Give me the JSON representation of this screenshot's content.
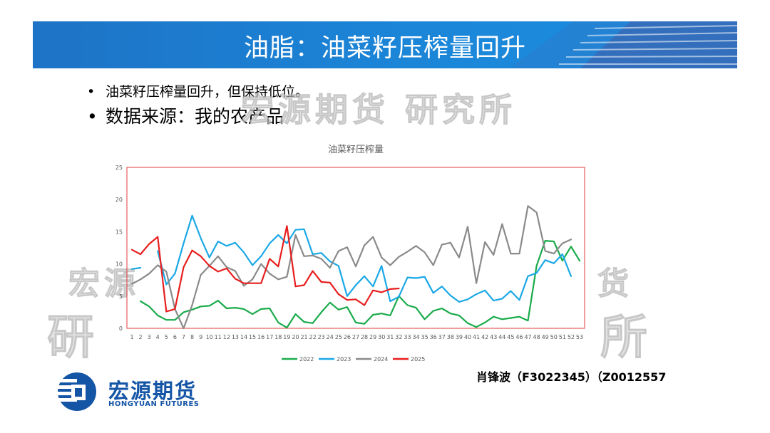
{
  "slide": {
    "title": "油脂：油菜籽压榨量回升",
    "bullets": [
      {
        "symbol": "•",
        "text": "油菜籽压榨量回升，但保持低位。"
      },
      {
        "symbol": "•",
        "text": "数据来源：我的农产品"
      }
    ],
    "watermark": {
      "top": "宏源期货 研究所",
      "left_line1": "宏源",
      "left_line2": "研",
      "right_line1": "货",
      "right_line2": "所"
    },
    "author": "肖锋波（F3022345）（Z0012557",
    "logo": {
      "name_cn": "宏源期货",
      "name_en": "HONGYUAN FUTURES"
    },
    "colors": {
      "banner": "#1b7fd2",
      "logo": "#1455a6",
      "plot_border": "#e23b3b"
    }
  },
  "chart_data": {
    "type": "line",
    "title": "油菜籽压榨量",
    "xlabel": "",
    "ylabel": "",
    "ylim": [
      0,
      25
    ],
    "yticks": [
      0,
      5,
      10,
      15,
      20,
      25
    ],
    "x": [
      1,
      2,
      3,
      4,
      5,
      6,
      7,
      8,
      9,
      10,
      11,
      12,
      13,
      14,
      15,
      16,
      17,
      18,
      19,
      20,
      21,
      22,
      23,
      24,
      25,
      26,
      27,
      28,
      29,
      30,
      31,
      32,
      33,
      34,
      35,
      36,
      37,
      38,
      39,
      40,
      41,
      42,
      43,
      44,
      45,
      46,
      47,
      48,
      49,
      50,
      51,
      52,
      53
    ],
    "grid": false,
    "legend_position": "bottom",
    "series": [
      {
        "name": "2022",
        "color": "#1aab4b",
        "values": [
          null,
          4.2,
          3.4,
          2.0,
          1.3,
          1.3,
          2.5,
          2.9,
          3.4,
          3.5,
          4.3,
          3.1,
          3.2,
          3.0,
          2.2,
          3.0,
          3.1,
          0.9,
          0.1,
          2.2,
          1.0,
          0.8,
          2.5,
          4.0,
          2.9,
          3.3,
          0.9,
          0.7,
          2.1,
          2.3,
          2.0,
          5.0,
          3.6,
          3.2,
          1.4,
          2.7,
          3.1,
          2.3,
          2.0,
          0.8,
          0.2,
          0.9,
          1.8,
          1.4,
          1.6,
          1.8,
          1.2,
          9.7,
          13.6,
          13.5,
          10.5,
          12.7,
          10.5
        ]
      },
      {
        "name": "2023",
        "color": "#1aa8e6",
        "values": [
          9.2,
          9.4,
          null,
          12.0,
          6.8,
          8.5,
          13.2,
          17.5,
          14.0,
          11.0,
          13.5,
          12.8,
          13.3,
          11.8,
          9.8,
          11.2,
          13.2,
          14.5,
          13.2,
          15.3,
          15.4,
          11.5,
          11.7,
          10.4,
          9.7,
          5.0,
          6.7,
          8.1,
          6.5,
          9.7,
          4.2,
          4.9,
          7.9,
          7.8,
          8.0,
          5.5,
          6.5,
          5.1,
          4.1,
          4.5,
          5.3,
          5.9,
          4.3,
          4.6,
          5.8,
          4.4,
          8.1,
          8.6,
          10.6,
          10.1,
          11.5,
          8.1,
          null
        ]
      },
      {
        "name": "2024",
        "color": "#8a8a8a",
        "values": [
          6.9,
          7.6,
          8.5,
          9.8,
          8.8,
          3.0,
          0.0,
          3.6,
          8.3,
          9.7,
          11.2,
          9.5,
          8.9,
          6.6,
          7.6,
          10.0,
          8.5,
          7.6,
          8.0,
          14.5,
          11.2,
          11.3,
          10.8,
          9.4,
          12.0,
          12.6,
          9.6,
          12.9,
          14.2,
          11.0,
          9.8,
          11.1,
          11.9,
          12.8,
          11.8,
          9.8,
          13.0,
          13.3,
          11.0,
          15.8,
          7.0,
          13.4,
          11.4,
          16.2,
          11.6,
          11.6,
          19.0,
          18.0,
          12.0,
          11.6,
          13.2,
          13.8,
          null
        ]
      },
      {
        "name": "2025",
        "color": "#e81e1e",
        "values": [
          12.2,
          11.5,
          13.1,
          14.2,
          2.6,
          3.0,
          9.5,
          12.1,
          11.2,
          9.7,
          8.8,
          9.3,
          7.7,
          7.0,
          7.0,
          7.0,
          10.8,
          9.6,
          15.9,
          6.5,
          6.7,
          8.9,
          7.2,
          7.1,
          5.3,
          4.4,
          4.5,
          3.6,
          5.9,
          5.6,
          6.1,
          6.2,
          null,
          null,
          null,
          null,
          null,
          null,
          null,
          null,
          null,
          null,
          null,
          null,
          null,
          null,
          null,
          null,
          null,
          null,
          null,
          null,
          null
        ]
      }
    ]
  }
}
